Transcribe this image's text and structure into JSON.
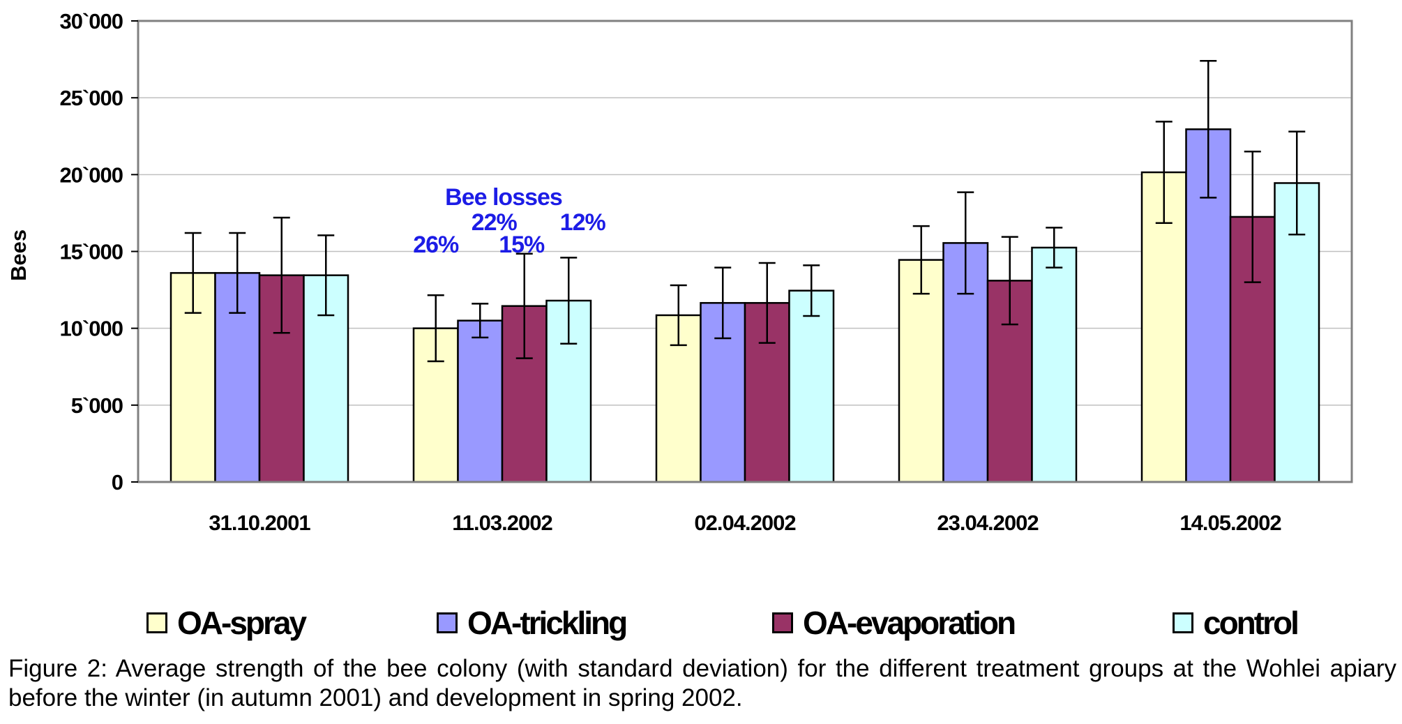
{
  "chart_data": {
    "type": "bar",
    "title": "",
    "xlabel": "",
    "ylabel": "Bees",
    "ylim": [
      0,
      30000
    ],
    "yticks": [
      {
        "value": 0,
        "label": "0"
      },
      {
        "value": 5000,
        "label": "5`000"
      },
      {
        "value": 10000,
        "label": "10`000"
      },
      {
        "value": 15000,
        "label": "15`000"
      },
      {
        "value": 20000,
        "label": "20`000"
      },
      {
        "value": 25000,
        "label": "25`000"
      },
      {
        "value": 30000,
        "label": "30`000"
      }
    ],
    "grid": true,
    "legend_position": "bottom",
    "categories": [
      "31.10.2001",
      "11.03.2002",
      "02.04.2002",
      "23.04.2002",
      "14.05.2002"
    ],
    "series": [
      {
        "name": "OA-spray",
        "color": "#ffffcc",
        "values": [
          13600,
          10000,
          10850,
          14450,
          20150
        ],
        "errors": [
          2600,
          2150,
          1950,
          2200,
          3300
        ]
      },
      {
        "name": "OA-trickling",
        "color": "#9999ff",
        "values": [
          13600,
          10500,
          11650,
          15550,
          22950
        ],
        "errors": [
          2600,
          1100,
          2300,
          3300,
          4450
        ]
      },
      {
        "name": "OA-evaporation",
        "color": "#993366",
        "values": [
          13450,
          11450,
          11650,
          13100,
          17250
        ],
        "errors": [
          3750,
          3400,
          2600,
          2850,
          4250
        ]
      },
      {
        "name": "control",
        "color": "#ccffff",
        "values": [
          13450,
          11800,
          12450,
          15250,
          19450
        ],
        "errors": [
          2600,
          2800,
          1650,
          1300,
          3350
        ]
      }
    ],
    "annotations": {
      "title": "Bee losses",
      "color": "#1c1ce6",
      "category": "11.03.2002",
      "labels": [
        "26%",
        "22%",
        "15%",
        "12%"
      ]
    }
  },
  "caption": "Figure 2: Average strength of the bee colony (with standard deviation) for the different treatment groups at the Wohlei apiary before the winter (in autumn 2001) and development in spring 2002."
}
